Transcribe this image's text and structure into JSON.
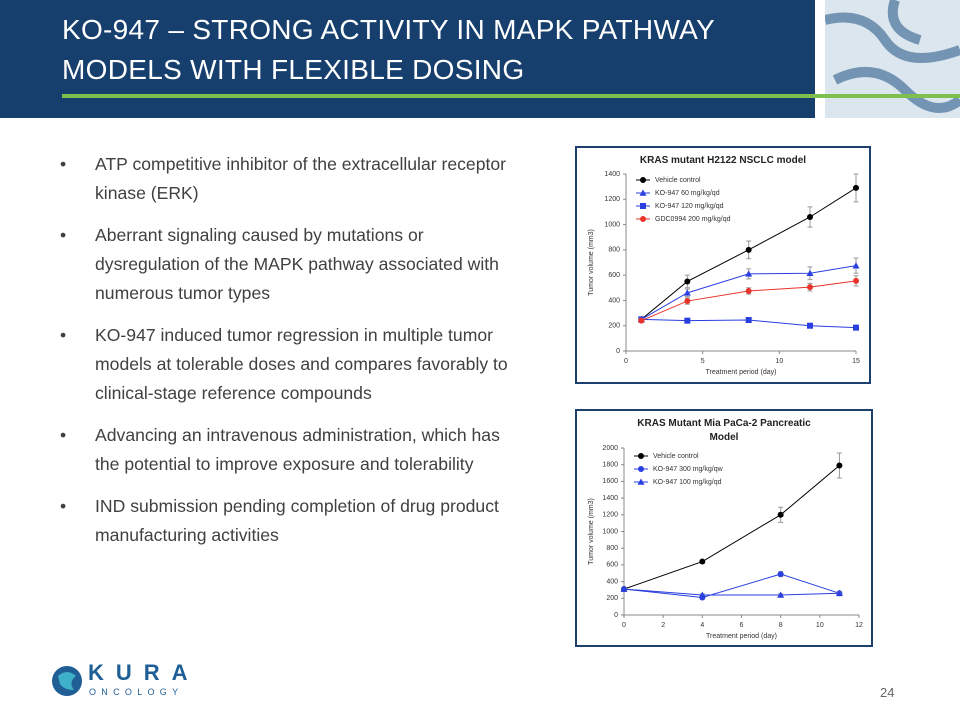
{
  "header": {
    "title": "KO-947 – STRONG ACTIVITY IN MAPK PATHWAY MODELS WITH FLEXIBLE DOSING"
  },
  "bullets": [
    "ATP competitive inhibitor of the extracellular receptor kinase (ERK)",
    "Aberrant signaling caused by mutations or dysregulation of the MAPK pathway associated with numerous tumor types",
    "KO-947 induced tumor regression in multiple tumor models at tolerable doses and compares favorably to clinical-stage reference compounds",
    "Advancing an intravenous administration, which has the potential to improve exposure and tolerability",
    "IND submission pending completion of drug product manufacturing activities"
  ],
  "logo": {
    "name": "KURA",
    "subtitle": "ONCOLOGY"
  },
  "page_number": "24",
  "chart_data": [
    {
      "type": "line",
      "title": "KRAS mutant H2122 NSCLC model",
      "x_label": "Treatment period (day)",
      "y_label": "Tumor volume (mm3)",
      "x": [
        1,
        4,
        8,
        12,
        15
      ],
      "xlim": [
        0,
        15
      ],
      "xticks": [
        0,
        5,
        10,
        15
      ],
      "ylim": [
        0,
        1400
      ],
      "yticks": [
        0,
        200,
        400,
        600,
        800,
        1000,
        1200,
        1400
      ],
      "legend": "upper left",
      "series": [
        {
          "name": "Vehicle control",
          "color": "#000000",
          "marker": "circle",
          "values": [
            250,
            550,
            800,
            1060,
            1290
          ],
          "errors": [
            20,
            50,
            70,
            80,
            110
          ]
        },
        {
          "name": "KO-947 60 mg/kg/qd",
          "color": "#2a3fe0",
          "marker": "triangle",
          "values": [
            250,
            460,
            610,
            615,
            675
          ],
          "errors": [
            20,
            30,
            40,
            50,
            60
          ]
        },
        {
          "name": "KO-947 120 mg/kg/qd",
          "color": "#2a3fe0",
          "marker": "square",
          "values": [
            250,
            240,
            245,
            200,
            185
          ],
          "errors": [
            15,
            15,
            20,
            15,
            15
          ]
        },
        {
          "name": "GDC0994 200 mg/kg/qd",
          "color": "#e8342a",
          "marker": "circle",
          "values": [
            240,
            395,
            475,
            505,
            555
          ],
          "errors": [
            15,
            25,
            25,
            30,
            40
          ]
        }
      ]
    },
    {
      "type": "line",
      "title": "KRAS Mutant Mia PaCa-2 Pancreatic Model",
      "x_label": "Treatment period (day)",
      "y_label": "Tumor volume (mm3)",
      "x": [
        0,
        4,
        8,
        11
      ],
      "xlim": [
        0,
        12
      ],
      "xticks": [
        0,
        2,
        4,
        6,
        8,
        10,
        12
      ],
      "ylim": [
        0,
        2000
      ],
      "yticks": [
        0,
        200,
        400,
        600,
        800,
        1000,
        1200,
        1400,
        1600,
        1800,
        2000
      ],
      "legend": "upper left",
      "series": [
        {
          "name": "Vehicle control",
          "color": "#000000",
          "marker": "circle",
          "values": [
            310,
            640,
            1200,
            1790
          ],
          "errors": [
            0,
            20,
            90,
            150
          ]
        },
        {
          "name": "KO-947  300 mg/kg/qw",
          "color": "#2a3fe0",
          "marker": "circle",
          "values": [
            310,
            210,
            490,
            260
          ],
          "errors": [
            0,
            20,
            30,
            20
          ]
        },
        {
          "name": "KO-947  100 mg/kg/qd",
          "color": "#2a3fe0",
          "marker": "triangle",
          "values": [
            310,
            240,
            240,
            260
          ],
          "errors": [
            0,
            15,
            15,
            15
          ]
        }
      ]
    }
  ]
}
